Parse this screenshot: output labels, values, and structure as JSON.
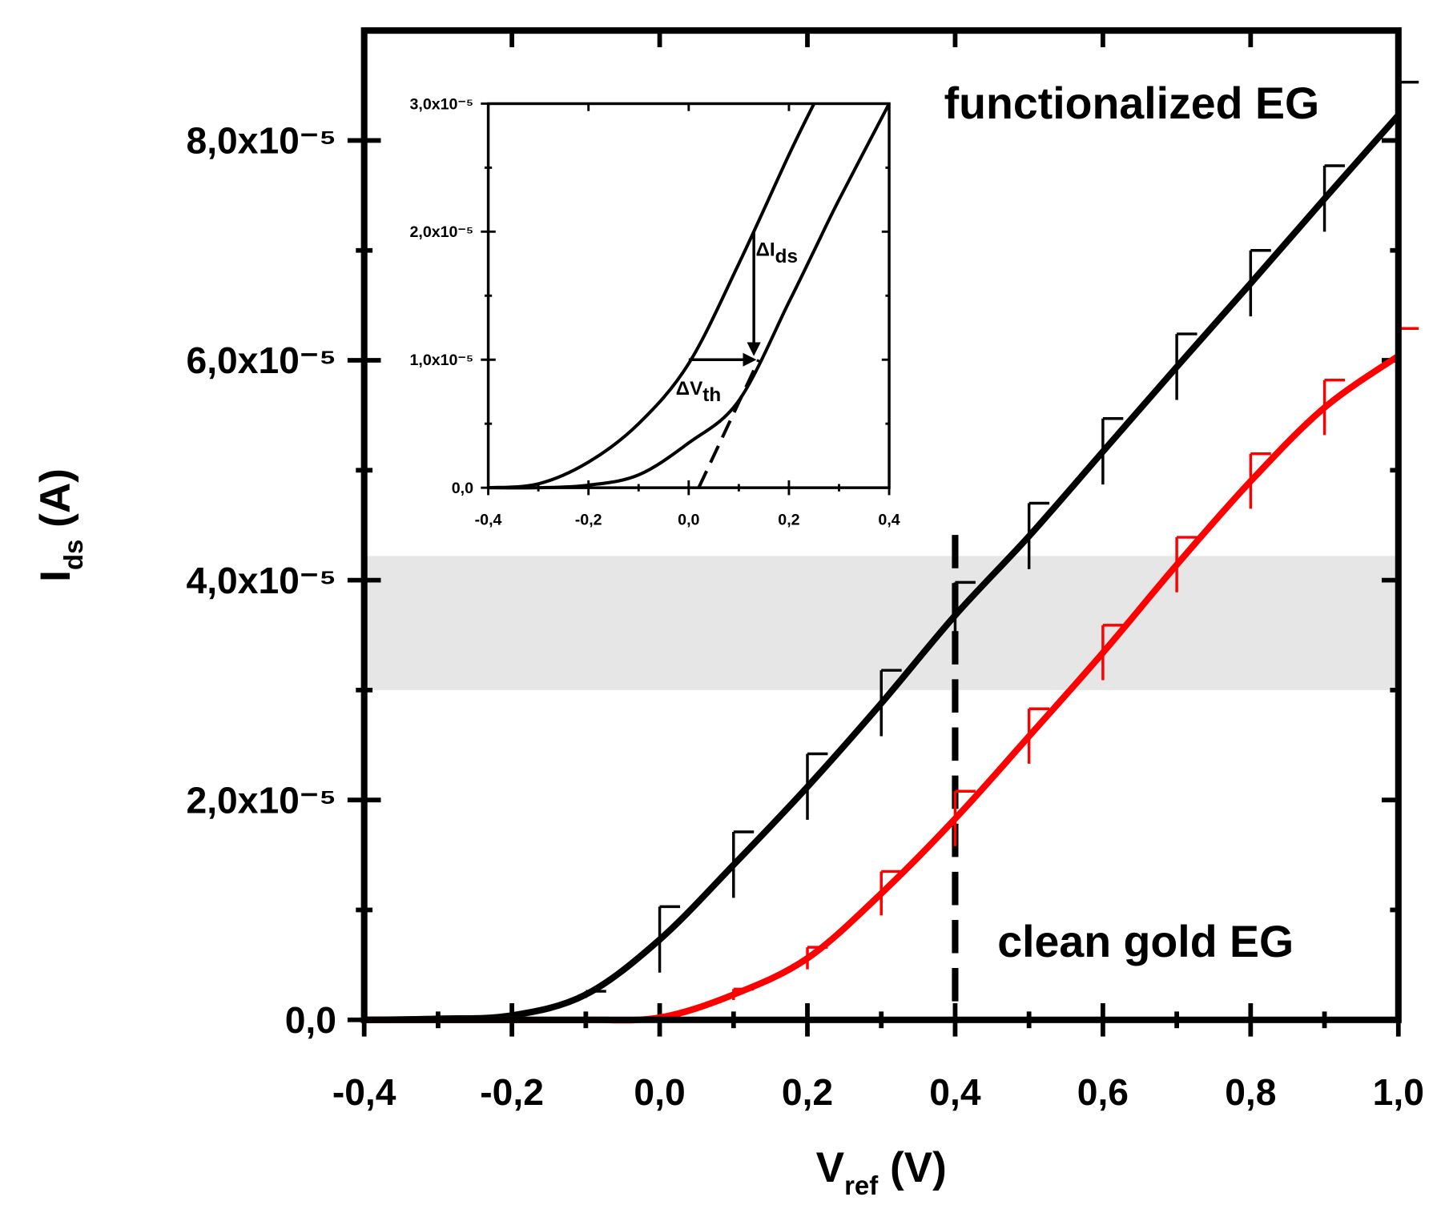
{
  "chart_data": [
    {
      "type": "line",
      "xlabel": {
        "main": "V",
        "sub": "ref",
        "tail": " (V)"
      },
      "ylabel": {
        "main": "I",
        "sub": "ds",
        "tail": " (A)"
      },
      "x": [
        -0.4,
        -0.3,
        -0.2,
        -0.1,
        0,
        0.1,
        0.2,
        0.3,
        0.4,
        0.5,
        0.6,
        0.7,
        0.8,
        0.9,
        1.0
      ],
      "series": [
        {
          "name": "functionalized EG",
          "color": "#000000",
          "values": [
            0,
            1e-07,
            4e-07,
            2.3e-06,
            7.3e-06,
            1.41e-05,
            2.12e-05,
            2.88e-05,
            3.68e-05,
            4.4e-05,
            5.17e-05,
            5.94e-05,
            6.7e-05,
            7.47e-05,
            8.23e-05
          ],
          "errors": [
            0,
            1e-07,
            2e-07,
            3e-07,
            3e-06,
            3e-06,
            3e-06,
            3e-06,
            3e-06,
            3e-06,
            3e-06,
            3e-06,
            3e-06,
            3e-06,
            3e-06
          ]
        },
        {
          "name": "clean gold EG",
          "color": "#ff0000",
          "values": [
            0,
            0,
            0,
            0,
            2e-07,
            2.3e-06,
            5.6e-06,
            1.15e-05,
            1.83e-05,
            2.58e-05,
            3.34e-05,
            4.14e-05,
            4.9e-05,
            5.57e-05,
            6.04e-05
          ],
          "errors": [
            0,
            0,
            0,
            0,
            1e-07,
            5e-07,
            1e-06,
            2e-06,
            2.5e-06,
            2.5e-06,
            2.5e-06,
            2.5e-06,
            2.5e-06,
            2.5e-06,
            2.5e-06
          ]
        }
      ],
      "xlim": [
        -0.4,
        1.0
      ],
      "ylim": [
        0,
        9e-05
      ],
      "xticks": [
        {
          "value": -0.4,
          "label": "-0,4"
        },
        {
          "value": -0.2,
          "label": "-0,2"
        },
        {
          "value": 0,
          "label": "0,0"
        },
        {
          "value": 0.2,
          "label": "0,2"
        },
        {
          "value": 0.4,
          "label": "0,4"
        },
        {
          "value": 0.6,
          "label": "0,6"
        },
        {
          "value": 0.8,
          "label": "0,8"
        },
        {
          "value": 1.0,
          "label": "1,0"
        }
      ],
      "yticks": [
        {
          "value": 0,
          "label": "0,0"
        },
        {
          "value": 2e-05,
          "label": "2,0x10⁻⁵"
        },
        {
          "value": 4e-05,
          "label": "4,0x10⁻⁵"
        },
        {
          "value": 6e-05,
          "label": "6,0x10⁻⁵"
        },
        {
          "value": 8e-05,
          "label": "8,0x10⁻⁵"
        }
      ],
      "band": [
        3e-05,
        4.22e-05
      ],
      "vline": 0.4
    },
    {
      "type": "line",
      "x": [
        -0.4,
        -0.3,
        -0.2,
        -0.1,
        0,
        0.1,
        0.2,
        0.25,
        0.3,
        0.4
      ],
      "series": [
        {
          "color": "#000000",
          "values": [
            0,
            3e-07,
            2e-06,
            5e-06,
            9.7e-06,
            1.75e-05,
            2.6e-05,
            3e-05,
            null,
            null
          ]
        },
        {
          "color": "#000000",
          "values": [
            0,
            0,
            2e-07,
            1e-06,
            3.5e-06,
            6.8e-06,
            1.45e-05,
            1.85e-05,
            2.25e-05,
            3e-05
          ]
        }
      ],
      "xlim": [
        -0.4,
        0.4
      ],
      "ylim": [
        0,
        3e-05
      ],
      "xticks": [
        {
          "value": -0.4,
          "label": "-0,4"
        },
        {
          "value": -0.2,
          "label": "-0,2"
        },
        {
          "value": 0,
          "label": "0,0"
        },
        {
          "value": 0.2,
          "label": "0,2"
        },
        {
          "value": 0.4,
          "label": "0,4"
        }
      ],
      "yticks": [
        {
          "value": 0,
          "label": "0,0"
        },
        {
          "value": 1e-05,
          "label": "1,0x10⁻⁵"
        },
        {
          "value": 2e-05,
          "label": "2,0x10⁻⁵"
        },
        {
          "value": 3e-05,
          "label": "3,0x10⁻⁵"
        }
      ],
      "tangent": {
        "x": [
          0.02,
          0.14
        ],
        "y": [
          0,
          1e-05
        ]
      },
      "arrows": [
        {
          "x": [
            0.13,
            0.13
          ],
          "y": [
            2e-05,
            1.05e-05
          ],
          "text": "ΔI",
          "sub": "ds"
        },
        {
          "x": [
            0,
            0.13
          ],
          "y": [
            1e-05,
            1e-05
          ],
          "text": "ΔV",
          "sub": "th"
        }
      ]
    }
  ]
}
